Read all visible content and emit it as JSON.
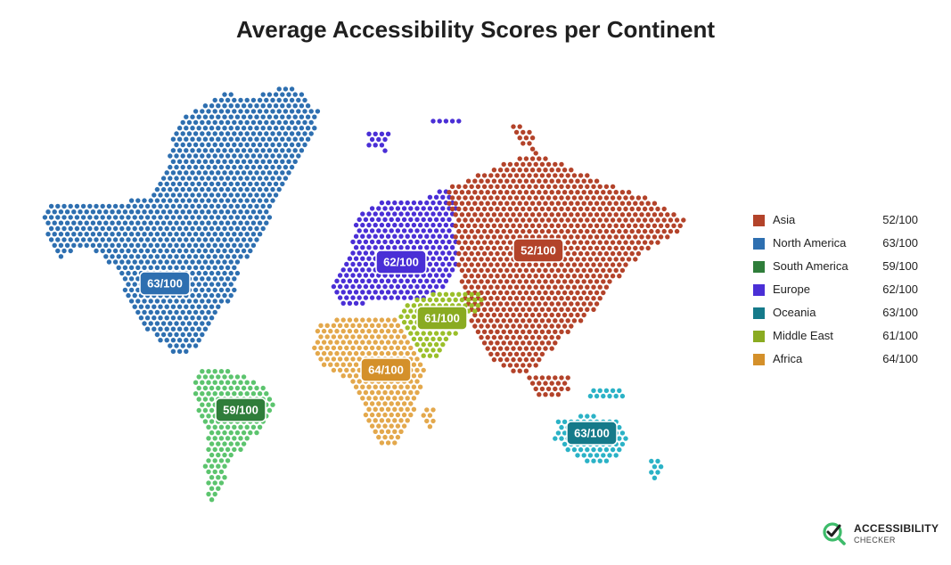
{
  "title": "Average Accessibility Scores per Continent",
  "regions": [
    {
      "id": "asia",
      "name": "Asia",
      "score": "52/100",
      "color": "#b3432a"
    },
    {
      "id": "north-america",
      "name": "North America",
      "score": "63/100",
      "color": "#2e6fb0"
    },
    {
      "id": "south-america",
      "name": "South America",
      "score": "59/100",
      "color": "#2f7d3a"
    },
    {
      "id": "europe",
      "name": "Europe",
      "score": "62/100",
      "color": "#4a2fd6"
    },
    {
      "id": "oceania",
      "name": "Oceania",
      "score": "63/100",
      "color": "#157a8a"
    },
    {
      "id": "middle-east",
      "name": "Middle East",
      "score": "61/100",
      "color": "#8aab21"
    },
    {
      "id": "africa",
      "name": "Africa",
      "score": "64/100",
      "color": "#d4902a"
    }
  ],
  "logo": {
    "main": "ACCESSIBILITY",
    "sub": "CHECKER"
  }
}
